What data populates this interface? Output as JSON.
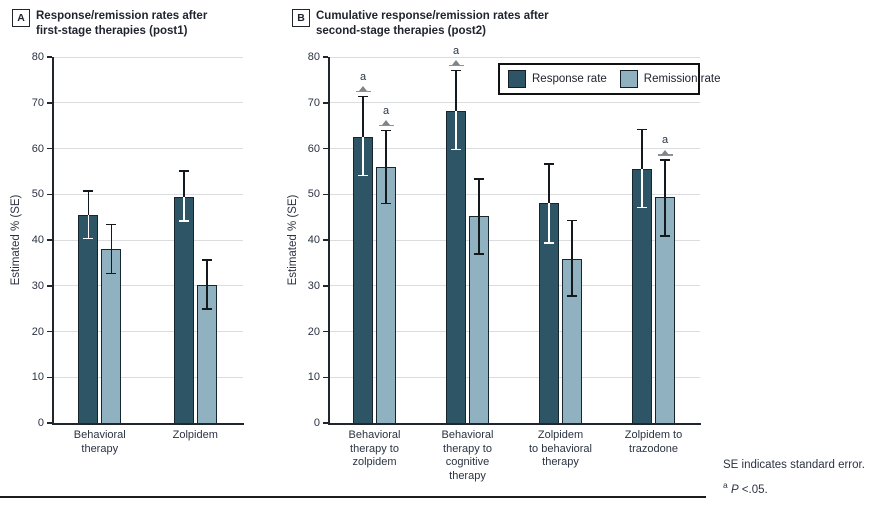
{
  "colors": {
    "response": "#2E5566",
    "remission": "#90B1C0",
    "bar_border": "#17252F",
    "grid": "#DBDCDD",
    "axis": "#20262C",
    "text": "#2B3342",
    "sig_marker": "#8E9194"
  },
  "legend": {
    "items": [
      {
        "label": "Response rate",
        "color": "#2E5566"
      },
      {
        "label": "Remission rate",
        "color": "#90B1C0"
      }
    ]
  },
  "footnotes": {
    "se_note": "SE indicates standard error.",
    "p_sup": "a",
    "p_italic": "P",
    "p_rest": " <.05."
  },
  "chart_data": [
    {
      "type": "bar",
      "panel_label": "A",
      "title": [
        "Response/remission rates after",
        "first-stage therapies (post1)"
      ],
      "ylabel": "Estimated % (SE)",
      "ylim": [
        0,
        80
      ],
      "yticks": [
        0,
        10,
        20,
        30,
        40,
        50,
        60,
        70,
        80
      ],
      "grid": true,
      "sig_symbol": "a",
      "categories": [
        [
          "Behavioral",
          "therapy"
        ],
        [
          "Zolpidem"
        ]
      ],
      "series": [
        {
          "name": "Response rate",
          "values": [
            45.5,
            49.5
          ],
          "err_lo": [
            40.2,
            44.0
          ],
          "err_hi": [
            50.9,
            55.2
          ],
          "sig": [
            false,
            false
          ]
        },
        {
          "name": "Remission rate",
          "values": [
            38.0,
            30.2
          ],
          "err_lo": [
            32.5,
            24.7
          ],
          "err_hi": [
            43.5,
            35.8
          ],
          "sig": [
            false,
            false
          ]
        }
      ]
    },
    {
      "type": "bar",
      "panel_label": "B",
      "title": [
        "Cumulative response/remission rates after",
        "second-stage therapies (post2)"
      ],
      "ylabel": "Estimated % (SE)",
      "ylim": [
        0,
        80
      ],
      "yticks": [
        0,
        10,
        20,
        30,
        40,
        50,
        60,
        70,
        80
      ],
      "grid": true,
      "legend_position": "top-right",
      "sig_symbol": "a",
      "categories": [
        [
          "Behavioral",
          "therapy to",
          "zolpidem"
        ],
        [
          "Behavioral",
          "therapy to",
          "cognitive",
          "therapy"
        ],
        [
          "Zolpidem",
          "to behavioral",
          "therapy"
        ],
        [
          "Zolpidem to",
          "trazodone"
        ]
      ],
      "series": [
        {
          "name": "Response rate",
          "values": [
            62.6,
            68.3,
            48.0,
            55.6
          ],
          "err_lo": [
            53.9,
            59.6,
            39.2,
            46.9
          ],
          "err_hi": [
            71.5,
            77.2,
            56.8,
            64.3
          ],
          "sig": [
            true,
            true,
            false,
            false
          ]
        },
        {
          "name": "Remission rate",
          "values": [
            56.0,
            45.2,
            35.9,
            49.3
          ],
          "err_lo": [
            47.8,
            36.8,
            27.6,
            40.7
          ],
          "err_hi": [
            64.1,
            53.5,
            44.4,
            57.6
          ],
          "sig": [
            true,
            false,
            false,
            true
          ]
        }
      ]
    }
  ]
}
